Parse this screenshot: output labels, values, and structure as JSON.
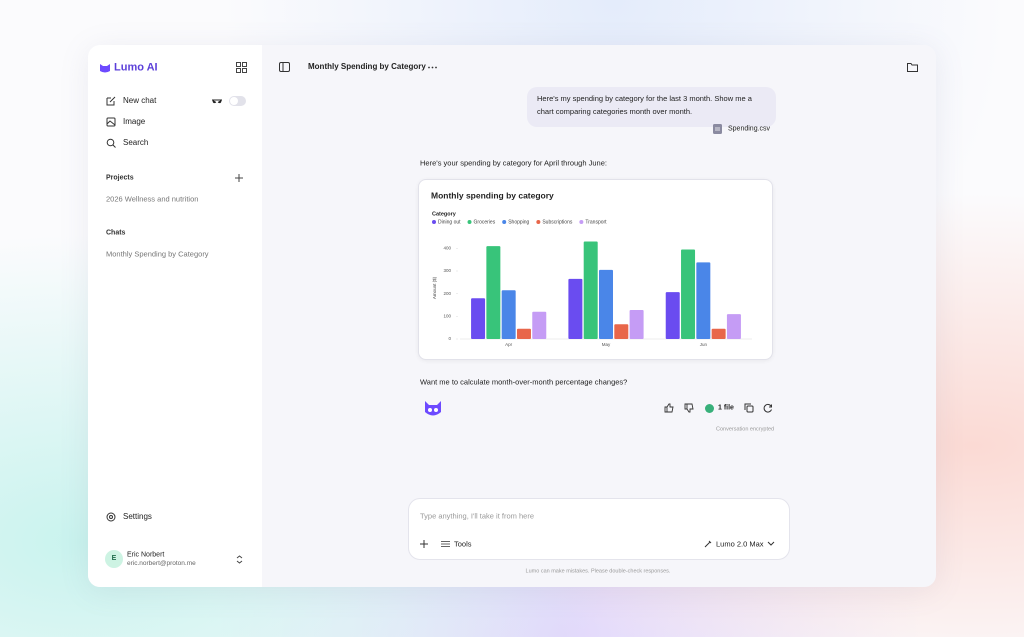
{
  "sidebar": {
    "brand": "Lumo AI",
    "nav": [
      "New chat",
      "Image",
      "Search"
    ],
    "projects_heading": "Projects",
    "projects": [
      "2026 Wellness and nutrition"
    ],
    "chats_heading": "Chats",
    "chats": [
      "Monthly Spending by Category"
    ],
    "settings": "Settings",
    "user": {
      "initial": "E",
      "name": "Eric Norbert",
      "email": "eric.norbert@proton.me"
    }
  },
  "header": {
    "title": "Monthly Spending by Category"
  },
  "messages": {
    "user": "Here's my spending by category for the last 3 month. Show me a chart comparing categories month over month.",
    "attachment": "Spending.csv",
    "assistant_intro": "Here's your spending by category for April through June:",
    "assistant_followup": "Want me to calculate month-over-month percentage changes?",
    "files": "1 file",
    "encrypted": "Conversation encrypted"
  },
  "composer": {
    "placeholder": "Type anything, I'll take it from here",
    "tools": "Tools",
    "model": "Lumo 2.0 Max",
    "disclaimer": "Lumo can make mistakes. Please double-check responses."
  },
  "chart_data": {
    "type": "bar",
    "title": "Monthly spending by category",
    "legend_title": "Category",
    "y_label": "Amount ($)",
    "categories": [
      "Apr",
      "May",
      "Jun"
    ],
    "series": [
      {
        "name": "Dining out",
        "color": "#6a4cf0",
        "values": [
          180,
          265,
          207
        ]
      },
      {
        "name": "Groceries",
        "color": "#38c47a",
        "values": [
          410,
          430,
          395
        ]
      },
      {
        "name": "Shopping",
        "color": "#4a86e8",
        "values": [
          215,
          305,
          338
        ]
      },
      {
        "name": "Subscriptions",
        "color": "#e8664a",
        "values": [
          45,
          65,
          45
        ]
      },
      {
        "name": "Transport",
        "color": "#c59cf5",
        "values": [
          120,
          128,
          110
        ]
      }
    ],
    "ylim": [
      0,
      450
    ],
    "yticks": [
      0,
      100,
      200,
      300,
      400
    ],
    "grid": false
  }
}
